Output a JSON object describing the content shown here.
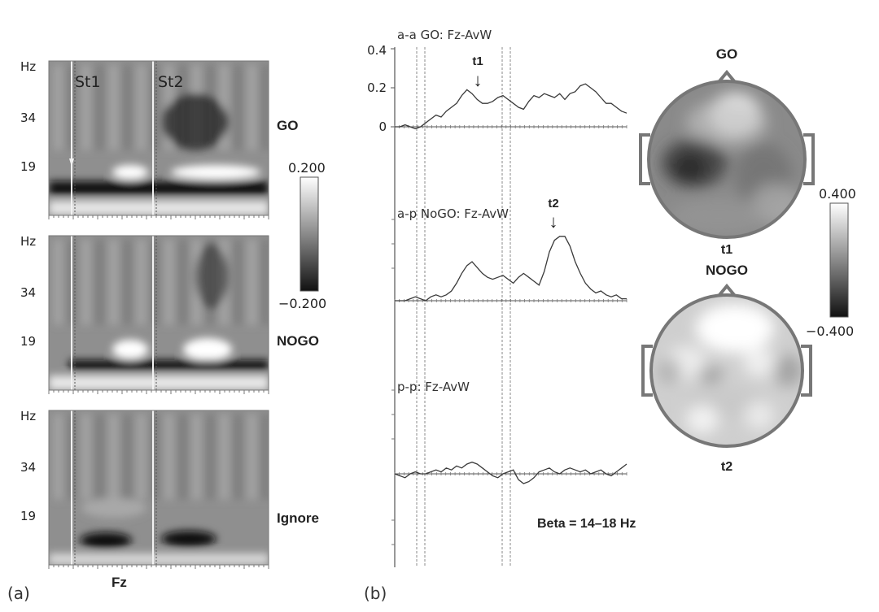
{
  "panel_a": {
    "label": "(a)",
    "hz_label": "Hz",
    "y_ticks": [
      "34",
      "19"
    ],
    "stimulus_labels": [
      "St1",
      "St2"
    ],
    "rows": [
      "GO",
      "NOGO",
      "Ignore"
    ],
    "electrode": "Fz",
    "colorbar": {
      "max": "0.200",
      "min": "−0.200"
    }
  },
  "panel_b": {
    "label": "(b)",
    "traces": [
      {
        "title": "a-a GO: Fz-AvW",
        "marker": "t1"
      },
      {
        "title": "a-p NoGO: Fz-AvW",
        "marker": "t2"
      },
      {
        "title": "p-p: Fz-AvW"
      }
    ],
    "y_ticks": [
      "0.4",
      "0.2",
      "0"
    ],
    "band_note": "Beta = 14–18 Hz",
    "maps": [
      {
        "condition": "GO",
        "time": "t1"
      },
      {
        "condition": "NOGO",
        "time": "t2"
      }
    ],
    "colorbar": {
      "max": "0.400",
      "min": "−0.400"
    },
    "arrow_glyph": "↓"
  },
  "chart_data": [
    {
      "type": "line",
      "title": "a-a GO: Fz-AvW",
      "ylim": [
        0,
        0.4
      ],
      "y_ticks": [
        0,
        0.2,
        0.4
      ],
      "annotation": "t1",
      "values": [
        0.0,
        0.0,
        0.01,
        0.0,
        -0.01,
        0.0,
        0.02,
        0.04,
        0.06,
        0.05,
        0.08,
        0.1,
        0.12,
        0.16,
        0.19,
        0.17,
        0.14,
        0.12,
        0.12,
        0.13,
        0.15,
        0.16,
        0.14,
        0.12,
        0.1,
        0.09,
        0.13,
        0.16,
        0.15,
        0.17,
        0.16,
        0.15,
        0.17,
        0.14,
        0.17,
        0.18,
        0.21,
        0.22,
        0.2,
        0.18,
        0.15,
        0.12,
        0.12,
        0.1,
        0.08,
        0.07
      ]
    },
    {
      "type": "line",
      "title": "a-p NoGO: Fz-AvW",
      "annotation": "t2",
      "values": [
        0.0,
        0.0,
        0.0,
        0.01,
        0.02,
        0.01,
        0.0,
        0.02,
        0.03,
        0.02,
        0.03,
        0.05,
        0.09,
        0.14,
        0.18,
        0.2,
        0.17,
        0.14,
        0.12,
        0.11,
        0.12,
        0.13,
        0.11,
        0.09,
        0.12,
        0.14,
        0.12,
        0.1,
        0.08,
        0.15,
        0.25,
        0.31,
        0.33,
        0.33,
        0.28,
        0.2,
        0.14,
        0.09,
        0.06,
        0.04,
        0.05,
        0.03,
        0.02,
        0.03,
        0.01,
        0.01
      ]
    },
    {
      "type": "line",
      "title": "p-p: Fz-AvW",
      "values": [
        0.0,
        -0.01,
        -0.02,
        0.0,
        0.01,
        0.0,
        0.0,
        0.01,
        0.02,
        0.01,
        0.03,
        0.02,
        0.04,
        0.03,
        0.05,
        0.06,
        0.05,
        0.03,
        0.01,
        -0.01,
        -0.02,
        0.0,
        0.01,
        0.02,
        -0.03,
        -0.05,
        -0.04,
        -0.02,
        0.01,
        0.02,
        0.03,
        0.01,
        0.0,
        0.02,
        0.03,
        0.02,
        0.01,
        0.02,
        0.0,
        0.01,
        0.02,
        0.0,
        -0.01,
        0.01,
        0.03,
        0.05
      ]
    }
  ]
}
